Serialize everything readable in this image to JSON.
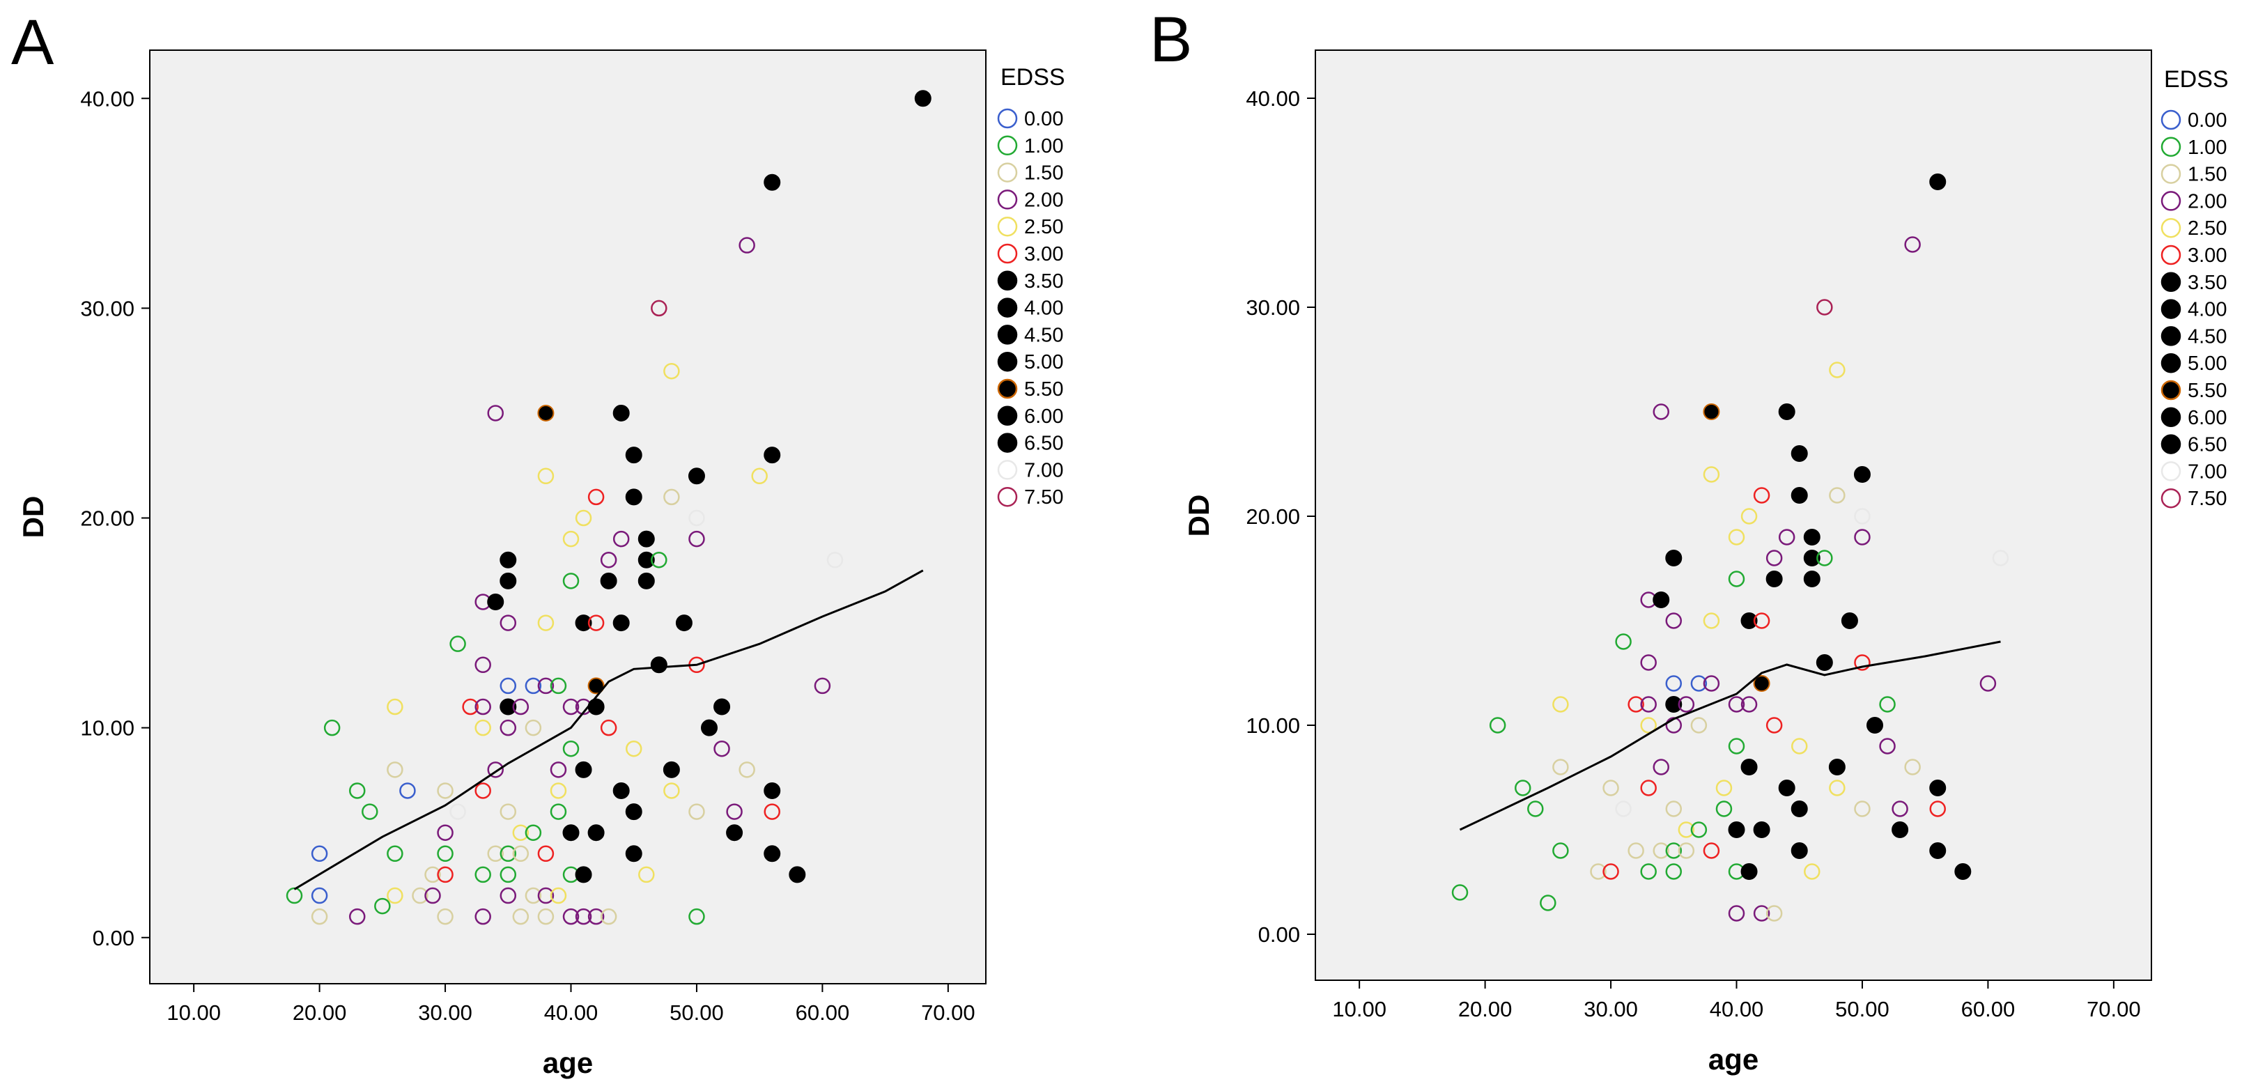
{
  "legend_colors": {
    "0.00": "#3a5fcd",
    "1.00": "#22aa33",
    "1.50": "#d8d0a0",
    "2.00": "#7a1a7a",
    "2.50": "#f0e060",
    "3.00": "#ee2222",
    "3.50": "#000000",
    "4.00": "#000000",
    "4.50": "#000000",
    "5.00": "#000000",
    "5.50": "#cc6600",
    "6.00": "#000000",
    "6.50": "#000000",
    "7.00": "#e8e8e8",
    "7.50": "#aa2255"
  },
  "chart_data": [
    {
      "type": "scatter",
      "panel_label": "A",
      "xlabel": "age",
      "ylabel": "DD",
      "xlim": [
        6.5,
        73
      ],
      "ylim": [
        -2.2,
        42.3
      ],
      "xticks": [
        10,
        20,
        30,
        40,
        50,
        60,
        70
      ],
      "xtick_labels": [
        "10.00",
        "20.00",
        "30.00",
        "40.00",
        "50.00",
        "60.00",
        "70.00"
      ],
      "yticks": [
        0,
        10,
        20,
        30,
        40
      ],
      "ytick_labels": [
        "0.00",
        "10.00",
        "20.00",
        "30.00",
        "40.00"
      ],
      "legend_title": "EDSS",
      "legend": [
        "0.00",
        "1.00",
        "1.50",
        "2.00",
        "2.50",
        "3.00",
        "3.50",
        "4.00",
        "4.50",
        "5.00",
        "5.50",
        "6.00",
        "6.50",
        "7.00",
        "7.50"
      ],
      "points": [
        [
          68,
          40,
          "6.50"
        ],
        [
          56,
          36,
          "6.50"
        ],
        [
          54,
          33,
          "2.00"
        ],
        [
          47,
          30,
          "7.50"
        ],
        [
          48,
          27,
          "2.50"
        ],
        [
          34,
          25,
          "2.00"
        ],
        [
          38,
          25,
          "5.50"
        ],
        [
          44,
          25,
          "4.00"
        ],
        [
          45,
          23,
          "4.00"
        ],
        [
          56,
          23,
          "4.00"
        ],
        [
          50,
          22,
          "4.00"
        ],
        [
          38,
          22,
          "2.50"
        ],
        [
          55,
          22,
          "2.50"
        ],
        [
          42,
          21,
          "3.00"
        ],
        [
          45,
          21,
          "4.00"
        ],
        [
          48,
          21,
          "1.50"
        ],
        [
          41,
          20,
          "2.50"
        ],
        [
          50,
          20,
          "7.00"
        ],
        [
          40,
          19,
          "2.50"
        ],
        [
          44,
          19,
          "2.00"
        ],
        [
          46,
          19,
          "4.00"
        ],
        [
          50,
          19,
          "2.00"
        ],
        [
          43,
          18,
          "2.00"
        ],
        [
          46,
          18,
          "4.00"
        ],
        [
          47,
          18,
          "1.00"
        ],
        [
          61,
          18,
          "7.00"
        ],
        [
          35,
          18,
          "4.00"
        ],
        [
          35,
          17,
          "4.00"
        ],
        [
          40,
          17,
          "1.00"
        ],
        [
          43,
          17,
          "4.00"
        ],
        [
          46,
          17,
          "4.00"
        ],
        [
          33,
          16,
          "2.00"
        ],
        [
          34,
          16,
          "4.00"
        ],
        [
          35,
          15,
          "2.00"
        ],
        [
          38,
          15,
          "2.50"
        ],
        [
          41,
          15,
          "4.00"
        ],
        [
          42,
          15,
          "3.00"
        ],
        [
          44,
          15,
          "4.00"
        ],
        [
          49,
          15,
          "4.00"
        ],
        [
          31,
          14,
          "1.00"
        ],
        [
          33,
          13,
          "2.00"
        ],
        [
          47,
          13,
          "4.00"
        ],
        [
          50,
          13,
          "3.00"
        ],
        [
          35,
          12,
          "0.00"
        ],
        [
          37,
          12,
          "0.00"
        ],
        [
          38,
          12,
          "2.00"
        ],
        [
          39,
          12,
          "1.00"
        ],
        [
          42,
          12,
          "5.50"
        ],
        [
          60,
          12,
          "2.00"
        ],
        [
          26,
          11,
          "2.50"
        ],
        [
          32,
          11,
          "3.00"
        ],
        [
          33,
          11,
          "2.00"
        ],
        [
          35,
          11,
          "4.00"
        ],
        [
          36,
          11,
          "2.00"
        ],
        [
          40,
          11,
          "2.00"
        ],
        [
          41,
          11,
          "2.00"
        ],
        [
          42,
          11,
          "4.00"
        ],
        [
          52,
          11,
          "4.00"
        ],
        [
          21,
          10,
          "1.00"
        ],
        [
          33,
          10,
          "2.50"
        ],
        [
          35,
          10,
          "2.00"
        ],
        [
          37,
          10,
          "1.50"
        ],
        [
          43,
          10,
          "3.00"
        ],
        [
          51,
          10,
          "4.00"
        ],
        [
          40,
          9,
          "1.00"
        ],
        [
          45,
          9,
          "2.50"
        ],
        [
          52,
          9,
          "2.00"
        ],
        [
          26,
          8,
          "1.50"
        ],
        [
          34,
          8,
          "2.00"
        ],
        [
          39,
          8,
          "2.00"
        ],
        [
          41,
          8,
          "4.00"
        ],
        [
          48,
          8,
          "4.00"
        ],
        [
          54,
          8,
          "1.50"
        ],
        [
          23,
          7,
          "1.00"
        ],
        [
          27,
          7,
          "0.00"
        ],
        [
          30,
          7,
          "1.50"
        ],
        [
          33,
          7,
          "3.00"
        ],
        [
          39,
          7,
          "2.50"
        ],
        [
          44,
          7,
          "4.00"
        ],
        [
          48,
          7,
          "2.50"
        ],
        [
          56,
          7,
          "4.00"
        ],
        [
          24,
          6,
          "1.00"
        ],
        [
          31,
          6,
          "7.00"
        ],
        [
          35,
          6,
          "1.50"
        ],
        [
          39,
          6,
          "1.00"
        ],
        [
          45,
          6,
          "4.00"
        ],
        [
          50,
          6,
          "1.50"
        ],
        [
          53,
          6,
          "2.00"
        ],
        [
          56,
          6,
          "3.00"
        ],
        [
          30,
          5,
          "2.00"
        ],
        [
          36,
          5,
          "2.50"
        ],
        [
          37,
          5,
          "1.00"
        ],
        [
          40,
          5,
          "4.00"
        ],
        [
          42,
          5,
          "4.00"
        ],
        [
          53,
          5,
          "4.00"
        ],
        [
          20,
          4,
          "0.00"
        ],
        [
          26,
          4,
          "1.00"
        ],
        [
          30,
          4,
          "1.00"
        ],
        [
          34,
          4,
          "1.50"
        ],
        [
          35,
          4,
          "1.00"
        ],
        [
          36,
          4,
          "1.50"
        ],
        [
          38,
          4,
          "3.00"
        ],
        [
          45,
          4,
          "4.00"
        ],
        [
          56,
          4,
          "4.00"
        ],
        [
          29,
          3,
          "1.50"
        ],
        [
          30,
          3,
          "3.00"
        ],
        [
          33,
          3,
          "1.00"
        ],
        [
          35,
          3,
          "1.00"
        ],
        [
          40,
          3,
          "1.00"
        ],
        [
          41,
          3,
          "4.00"
        ],
        [
          46,
          3,
          "2.50"
        ],
        [
          58,
          3,
          "4.00"
        ],
        [
          18,
          2,
          "1.00"
        ],
        [
          20,
          2,
          "0.00"
        ],
        [
          26,
          2,
          "2.50"
        ],
        [
          28,
          2,
          "1.50"
        ],
        [
          29,
          2,
          "2.00"
        ],
        [
          35,
          2,
          "2.00"
        ],
        [
          37,
          2,
          "1.50"
        ],
        [
          38,
          2,
          "2.00"
        ],
        [
          39,
          2,
          "2.50"
        ],
        [
          25,
          1.5,
          "1.00"
        ],
        [
          20,
          1,
          "1.50"
        ],
        [
          23,
          1,
          "2.00"
        ],
        [
          30,
          1,
          "1.50"
        ],
        [
          33,
          1,
          "2.00"
        ],
        [
          36,
          1,
          "1.50"
        ],
        [
          38,
          1,
          "1.50"
        ],
        [
          40,
          1,
          "2.00"
        ],
        [
          41,
          1,
          "2.00"
        ],
        [
          42,
          1,
          "2.00"
        ],
        [
          43,
          1,
          "1.50"
        ],
        [
          50,
          1,
          "1.00"
        ]
      ],
      "fit_line": [
        [
          18,
          2.3
        ],
        [
          25,
          4.8
        ],
        [
          30,
          6.3
        ],
        [
          35,
          8.3
        ],
        [
          40,
          10.0
        ],
        [
          43,
          12.2
        ],
        [
          45,
          12.8
        ],
        [
          50,
          13.0
        ],
        [
          55,
          14.0
        ],
        [
          60,
          15.3
        ],
        [
          65,
          16.5
        ],
        [
          68,
          17.5
        ]
      ]
    },
    {
      "type": "scatter",
      "panel_label": "B",
      "xlabel": "age",
      "ylabel": "DD",
      "xlim": [
        6.5,
        73
      ],
      "ylim": [
        -2.2,
        42.3
      ],
      "xticks": [
        10,
        20,
        30,
        40,
        50,
        60,
        70
      ],
      "xtick_labels": [
        "10.00",
        "20.00",
        "30.00",
        "40.00",
        "50.00",
        "60.00",
        "70.00"
      ],
      "yticks": [
        0,
        10,
        20,
        30,
        40
      ],
      "ytick_labels": [
        "0.00",
        "10.00",
        "20.00",
        "30.00",
        "40.00"
      ],
      "legend_title": "EDSS",
      "legend": [
        "0.00",
        "1.00",
        "1.50",
        "2.00",
        "2.50",
        "3.00",
        "3.50",
        "4.00",
        "4.50",
        "5.00",
        "5.50",
        "6.00",
        "6.50",
        "7.00",
        "7.50"
      ],
      "points": [
        [
          56,
          36,
          "6.00"
        ],
        [
          54,
          33,
          "2.00"
        ],
        [
          47,
          30,
          "7.50"
        ],
        [
          48,
          27,
          "2.50"
        ],
        [
          34,
          25,
          "2.00"
        ],
        [
          38,
          25,
          "5.50"
        ],
        [
          44,
          25,
          "4.00"
        ],
        [
          45,
          23,
          "6.50"
        ],
        [
          50,
          22,
          "3.50"
        ],
        [
          38,
          22,
          "2.50"
        ],
        [
          42,
          21,
          "3.00"
        ],
        [
          45,
          21,
          "4.00"
        ],
        [
          48,
          21,
          "1.50"
        ],
        [
          41,
          20,
          "2.50"
        ],
        [
          50,
          20,
          "7.00"
        ],
        [
          40,
          19,
          "2.50"
        ],
        [
          44,
          19,
          "2.00"
        ],
        [
          46,
          19,
          "6.50"
        ],
        [
          50,
          19,
          "2.00"
        ],
        [
          43,
          18,
          "2.00"
        ],
        [
          46,
          18,
          "6.50"
        ],
        [
          47,
          18,
          "1.00"
        ],
        [
          61,
          18,
          "7.00"
        ],
        [
          35,
          18,
          "4.00"
        ],
        [
          40,
          17,
          "1.00"
        ],
        [
          43,
          17,
          "5.00"
        ],
        [
          46,
          17,
          "6.50"
        ],
        [
          33,
          16,
          "2.00"
        ],
        [
          34,
          16,
          "3.50"
        ],
        [
          35,
          15,
          "2.00"
        ],
        [
          38,
          15,
          "2.50"
        ],
        [
          41,
          15,
          "5.00"
        ],
        [
          42,
          15,
          "3.00"
        ],
        [
          49,
          15,
          "3.50"
        ],
        [
          31,
          14,
          "1.00"
        ],
        [
          33,
          13,
          "2.00"
        ],
        [
          47,
          13,
          "4.00"
        ],
        [
          50,
          13,
          "3.00"
        ],
        [
          35,
          12,
          "0.00"
        ],
        [
          37,
          12,
          "0.00"
        ],
        [
          38,
          12,
          "2.00"
        ],
        [
          42,
          12,
          "5.50"
        ],
        [
          60,
          12,
          "2.00"
        ],
        [
          26,
          11,
          "2.50"
        ],
        [
          32,
          11,
          "3.00"
        ],
        [
          33,
          11,
          "2.00"
        ],
        [
          35,
          11,
          "4.00"
        ],
        [
          36,
          11,
          "2.00"
        ],
        [
          40,
          11,
          "2.00"
        ],
        [
          41,
          11,
          "2.00"
        ],
        [
          52,
          11,
          "1.00"
        ],
        [
          21,
          10,
          "1.00"
        ],
        [
          33,
          10,
          "2.50"
        ],
        [
          35,
          10,
          "2.00"
        ],
        [
          37,
          10,
          "1.50"
        ],
        [
          43,
          10,
          "3.00"
        ],
        [
          51,
          10,
          "5.00"
        ],
        [
          40,
          9,
          "1.00"
        ],
        [
          45,
          9,
          "2.50"
        ],
        [
          52,
          9,
          "2.00"
        ],
        [
          26,
          8,
          "1.50"
        ],
        [
          34,
          8,
          "2.00"
        ],
        [
          41,
          8,
          "6.50"
        ],
        [
          48,
          8,
          "3.50"
        ],
        [
          54,
          8,
          "1.50"
        ],
        [
          23,
          7,
          "1.00"
        ],
        [
          30,
          7,
          "1.50"
        ],
        [
          33,
          7,
          "3.00"
        ],
        [
          39,
          7,
          "2.50"
        ],
        [
          44,
          7,
          "4.00"
        ],
        [
          48,
          7,
          "2.50"
        ],
        [
          56,
          7,
          "6.50"
        ],
        [
          24,
          6,
          "1.00"
        ],
        [
          31,
          6,
          "7.00"
        ],
        [
          35,
          6,
          "1.50"
        ],
        [
          39,
          6,
          "1.00"
        ],
        [
          45,
          6,
          "5.00"
        ],
        [
          50,
          6,
          "1.50"
        ],
        [
          53,
          6,
          "2.00"
        ],
        [
          56,
          6,
          "3.00"
        ],
        [
          36,
          5,
          "2.50"
        ],
        [
          37,
          5,
          "1.00"
        ],
        [
          40,
          5,
          "4.00"
        ],
        [
          42,
          5,
          "4.00"
        ],
        [
          53,
          5,
          "4.00"
        ],
        [
          26,
          4,
          "1.00"
        ],
        [
          32,
          4,
          "1.50"
        ],
        [
          34,
          4,
          "1.50"
        ],
        [
          35,
          4,
          "1.00"
        ],
        [
          36,
          4,
          "1.50"
        ],
        [
          38,
          4,
          "3.00"
        ],
        [
          45,
          4,
          "3.50"
        ],
        [
          56,
          4,
          "3.50"
        ],
        [
          29,
          3,
          "1.50"
        ],
        [
          30,
          3,
          "3.00"
        ],
        [
          33,
          3,
          "1.00"
        ],
        [
          35,
          3,
          "1.00"
        ],
        [
          40,
          3,
          "1.00"
        ],
        [
          41,
          3,
          "6.50"
        ],
        [
          46,
          3,
          "2.50"
        ],
        [
          58,
          3,
          "3.50"
        ],
        [
          18,
          2,
          "1.00"
        ],
        [
          25,
          1.5,
          "1.00"
        ],
        [
          40,
          1,
          "2.00"
        ],
        [
          42,
          1,
          "2.00"
        ],
        [
          43,
          1,
          "1.50"
        ]
      ],
      "fit_line": [
        [
          18,
          5.0
        ],
        [
          25,
          7.0
        ],
        [
          30,
          8.5
        ],
        [
          35,
          10.3
        ],
        [
          40,
          11.5
        ],
        [
          42,
          12.5
        ],
        [
          44,
          12.9
        ],
        [
          47,
          12.4
        ],
        [
          50,
          12.8
        ],
        [
          55,
          13.3
        ],
        [
          61,
          14.0
        ]
      ]
    }
  ]
}
